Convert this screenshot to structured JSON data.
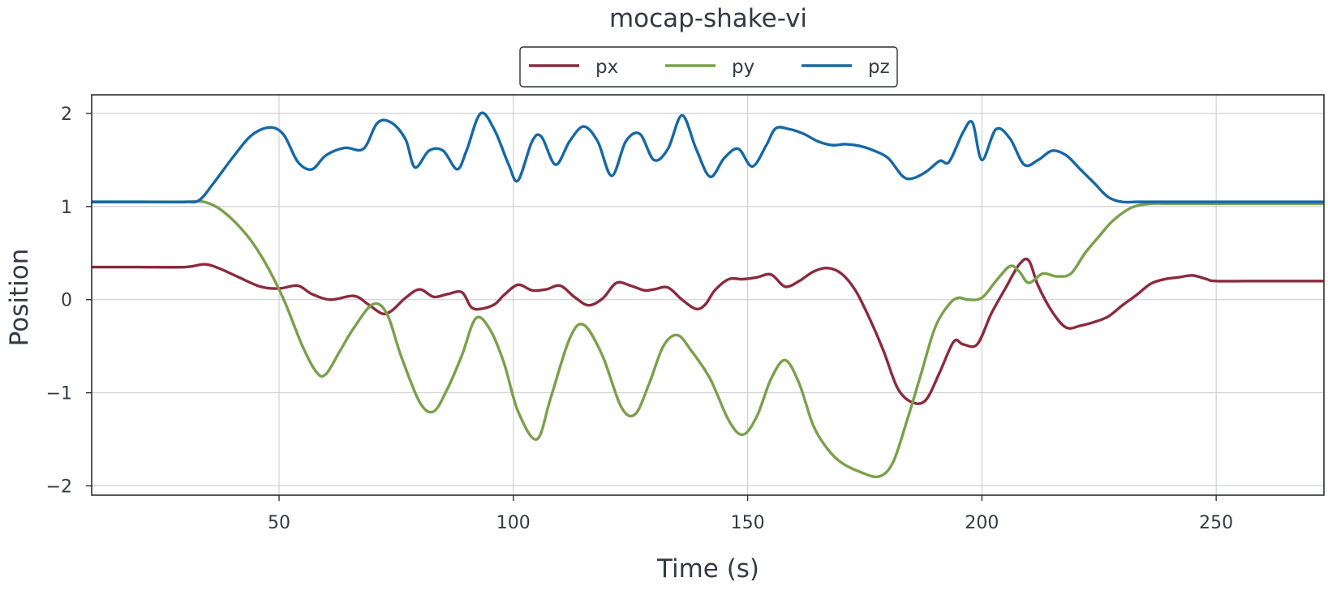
{
  "chart_data": {
    "type": "line",
    "title": "mocap-shake-vi",
    "xlabel": "Time (s)",
    "ylabel": "Position",
    "xlim": [
      10,
      273
    ],
    "ylim": [
      -2.1,
      2.2
    ],
    "xticks": [
      50,
      100,
      150,
      200,
      250
    ],
    "yticks": [
      -2,
      -1,
      0,
      1,
      2
    ],
    "xtick_labels": [
      "50",
      "100",
      "150",
      "200",
      "250"
    ],
    "ytick_labels": [
      "−2",
      "−1",
      "0",
      "1",
      "2"
    ],
    "grid": true,
    "legend_position": "top-center",
    "series": [
      {
        "name": "px",
        "color": "#8b2a3e",
        "x": [
          10,
          20,
          30,
          34,
          37,
          41,
          46,
          50,
          54,
          57,
          61,
          66,
          69,
          72,
          74,
          77,
          80,
          83,
          86,
          89,
          91,
          93,
          96,
          98,
          101,
          104,
          107,
          110,
          113,
          116,
          119,
          122,
          125,
          128,
          130,
          133,
          136,
          139,
          141,
          143,
          146,
          149,
          152,
          155,
          158,
          161,
          164,
          167,
          170,
          173,
          176,
          179,
          182,
          185,
          188,
          191,
          194,
          196,
          199,
          202,
          205,
          208,
          210,
          212,
          215,
          218,
          221,
          224,
          227,
          230,
          233,
          236,
          239,
          242,
          245,
          248,
          250,
          260,
          273
        ],
        "y": [
          0.35,
          0.35,
          0.35,
          0.38,
          0.34,
          0.25,
          0.14,
          0.12,
          0.15,
          0.06,
          0.0,
          0.04,
          -0.05,
          -0.15,
          -0.12,
          0.02,
          0.11,
          0.03,
          0.06,
          0.08,
          -0.08,
          -0.1,
          -0.05,
          0.05,
          0.16,
          0.1,
          0.11,
          0.15,
          0.03,
          -0.06,
          0.01,
          0.18,
          0.15,
          0.1,
          0.11,
          0.13,
          0.0,
          -0.1,
          -0.05,
          0.1,
          0.22,
          0.22,
          0.24,
          0.27,
          0.14,
          0.2,
          0.3,
          0.34,
          0.28,
          0.1,
          -0.2,
          -0.55,
          -0.95,
          -1.1,
          -1.08,
          -0.78,
          -0.45,
          -0.48,
          -0.48,
          -0.15,
          0.12,
          0.38,
          0.42,
          0.15,
          -0.13,
          -0.3,
          -0.28,
          -0.24,
          -0.18,
          -0.06,
          0.05,
          0.17,
          0.22,
          0.24,
          0.26,
          0.22,
          0.2,
          0.2,
          0.2
        ]
      },
      {
        "name": "py",
        "color": "#7ba04a",
        "x": [
          10,
          20,
          30,
          34,
          38,
          43,
          47,
          51,
          55,
          58,
          60,
          63,
          66,
          70,
          73,
          76,
          80,
          83,
          86,
          89,
          92,
          95,
          98,
          101,
          105,
          108,
          112,
          115,
          119,
          123,
          126,
          129,
          132,
          135,
          138,
          142,
          146,
          149,
          152,
          155,
          158,
          161,
          164,
          167,
          170,
          174,
          178,
          181,
          184,
          187,
          190,
          193,
          195,
          197,
          200,
          203,
          206,
          208,
          210,
          213,
          216,
          219,
          222,
          225,
          228,
          232,
          236,
          240,
          250,
          273
        ],
        "y": [
          1.05,
          1.05,
          1.05,
          1.05,
          0.95,
          0.7,
          0.4,
          0.0,
          -0.5,
          -0.78,
          -0.8,
          -0.55,
          -0.3,
          -0.05,
          -0.15,
          -0.6,
          -1.1,
          -1.2,
          -0.95,
          -0.6,
          -0.2,
          -0.32,
          -0.68,
          -1.2,
          -1.5,
          -1.05,
          -0.42,
          -0.27,
          -0.6,
          -1.15,
          -1.23,
          -0.9,
          -0.5,
          -0.38,
          -0.55,
          -0.85,
          -1.3,
          -1.45,
          -1.25,
          -0.85,
          -0.65,
          -0.9,
          -1.35,
          -1.6,
          -1.75,
          -1.85,
          -1.9,
          -1.75,
          -1.3,
          -0.8,
          -0.3,
          -0.05,
          0.02,
          0.0,
          0.02,
          0.2,
          0.36,
          0.3,
          0.18,
          0.28,
          0.25,
          0.28,
          0.5,
          0.68,
          0.85,
          0.99,
          1.03,
          1.03,
          1.03,
          1.03
        ]
      },
      {
        "name": "pz",
        "color": "#1668a6",
        "x": [
          10,
          20,
          30,
          33,
          36,
          40,
          44,
          48,
          51,
          54,
          57,
          60,
          64,
          68,
          71,
          74,
          77,
          79,
          82,
          85,
          88,
          90,
          93,
          96,
          99,
          101,
          104,
          106,
          109,
          112,
          115,
          118,
          121,
          124,
          127,
          130,
          133,
          136,
          139,
          142,
          145,
          148,
          151,
          154,
          156,
          159,
          162,
          165,
          168,
          171,
          174,
          177,
          180,
          183,
          185,
          188,
          191,
          193,
          196,
          198,
          200,
          203,
          206,
          209,
          212,
          215,
          218,
          221,
          224,
          227,
          230,
          233,
          236,
          240,
          250,
          273
        ],
        "y": [
          1.05,
          1.05,
          1.05,
          1.07,
          1.25,
          1.52,
          1.76,
          1.85,
          1.77,
          1.48,
          1.4,
          1.55,
          1.63,
          1.62,
          1.9,
          1.9,
          1.72,
          1.42,
          1.6,
          1.6,
          1.4,
          1.6,
          2.0,
          1.82,
          1.45,
          1.28,
          1.7,
          1.75,
          1.45,
          1.7,
          1.86,
          1.7,
          1.33,
          1.7,
          1.78,
          1.5,
          1.62,
          1.98,
          1.62,
          1.32,
          1.52,
          1.62,
          1.43,
          1.66,
          1.84,
          1.83,
          1.78,
          1.7,
          1.66,
          1.67,
          1.65,
          1.6,
          1.52,
          1.33,
          1.3,
          1.37,
          1.49,
          1.48,
          1.8,
          1.9,
          1.5,
          1.83,
          1.73,
          1.45,
          1.5,
          1.6,
          1.55,
          1.4,
          1.25,
          1.1,
          1.05,
          1.05,
          1.05,
          1.05,
          1.05,
          1.05
        ]
      }
    ]
  }
}
